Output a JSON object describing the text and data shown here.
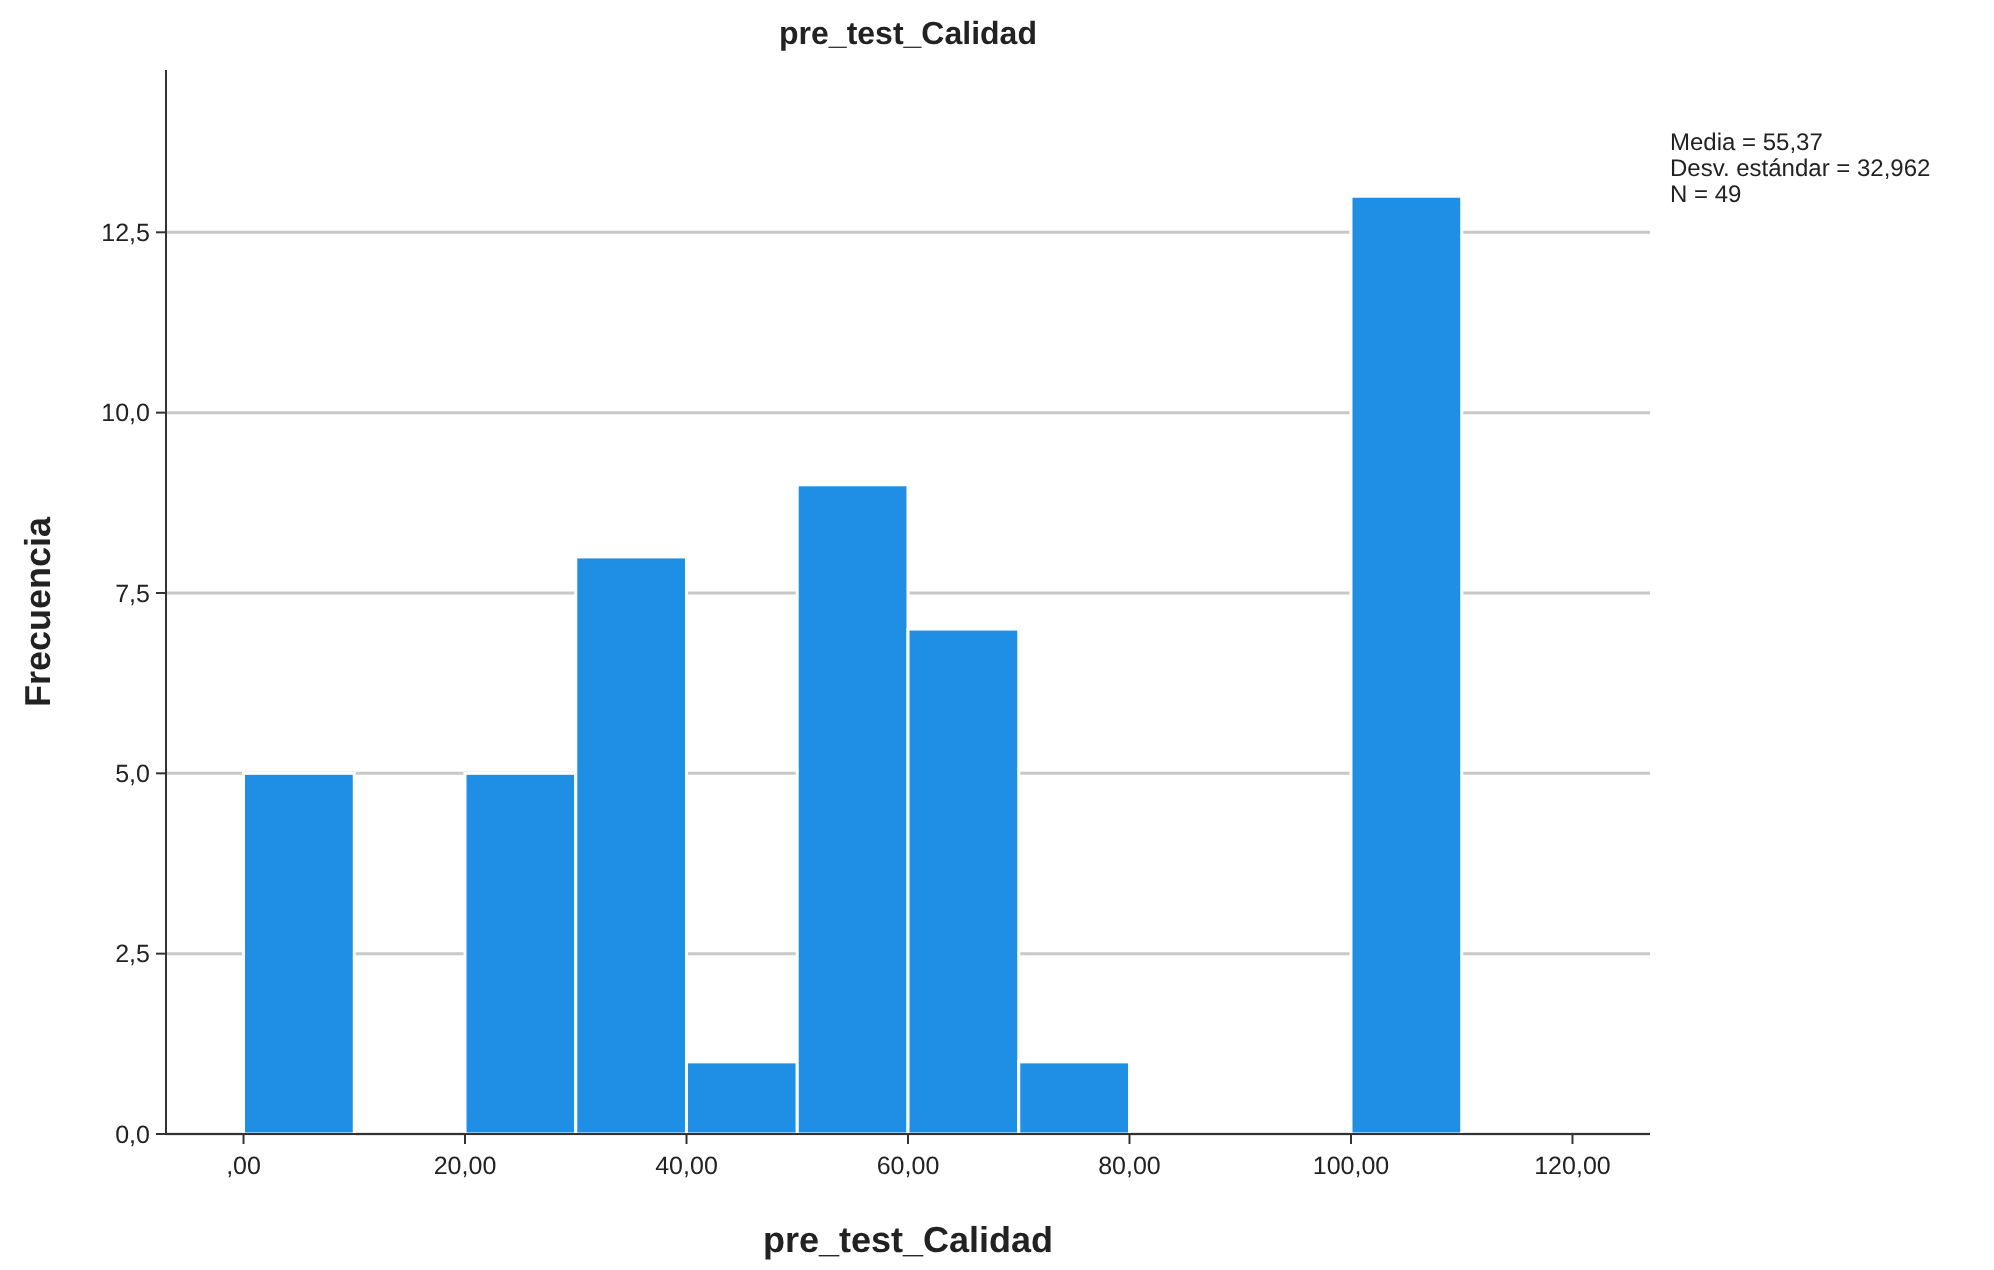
{
  "chart_data": {
    "type": "histogram",
    "title": "pre_test_Calidad",
    "xlabel": "pre_test_Calidad",
    "ylabel": "Frecuencia",
    "bins": [
      0,
      10,
      20,
      30,
      40,
      50,
      60,
      70,
      80,
      90,
      100,
      110
    ],
    "values": [
      5,
      0,
      5,
      8,
      1,
      9,
      7,
      1,
      0,
      0,
      13
    ],
    "color": "#1f8fe6",
    "xlim": [
      -7,
      127
    ],
    "xticks": [
      {
        "value": 0,
        "label": ",00"
      },
      {
        "value": 20,
        "label": "20,00"
      },
      {
        "value": 40,
        "label": "40,00"
      },
      {
        "value": 60,
        "label": "60,00"
      },
      {
        "value": 80,
        "label": "80,00"
      },
      {
        "value": 100,
        "label": "100,00"
      },
      {
        "value": 120,
        "label": "120,00"
      }
    ],
    "ylim": [
      0,
      14.75
    ],
    "yticks": [
      {
        "value": 0,
        "label": "0,0"
      },
      {
        "value": 2.5,
        "label": "2,5"
      },
      {
        "value": 5,
        "label": "5,0"
      },
      {
        "value": 7.5,
        "label": "7,5"
      },
      {
        "value": 10,
        "label": "10,0"
      },
      {
        "value": 12.5,
        "label": "12,5"
      }
    ],
    "grid": "y",
    "annotations": [
      "Media = 55,37",
      "Desv. estándar = 32,962",
      "N = 49"
    ]
  }
}
